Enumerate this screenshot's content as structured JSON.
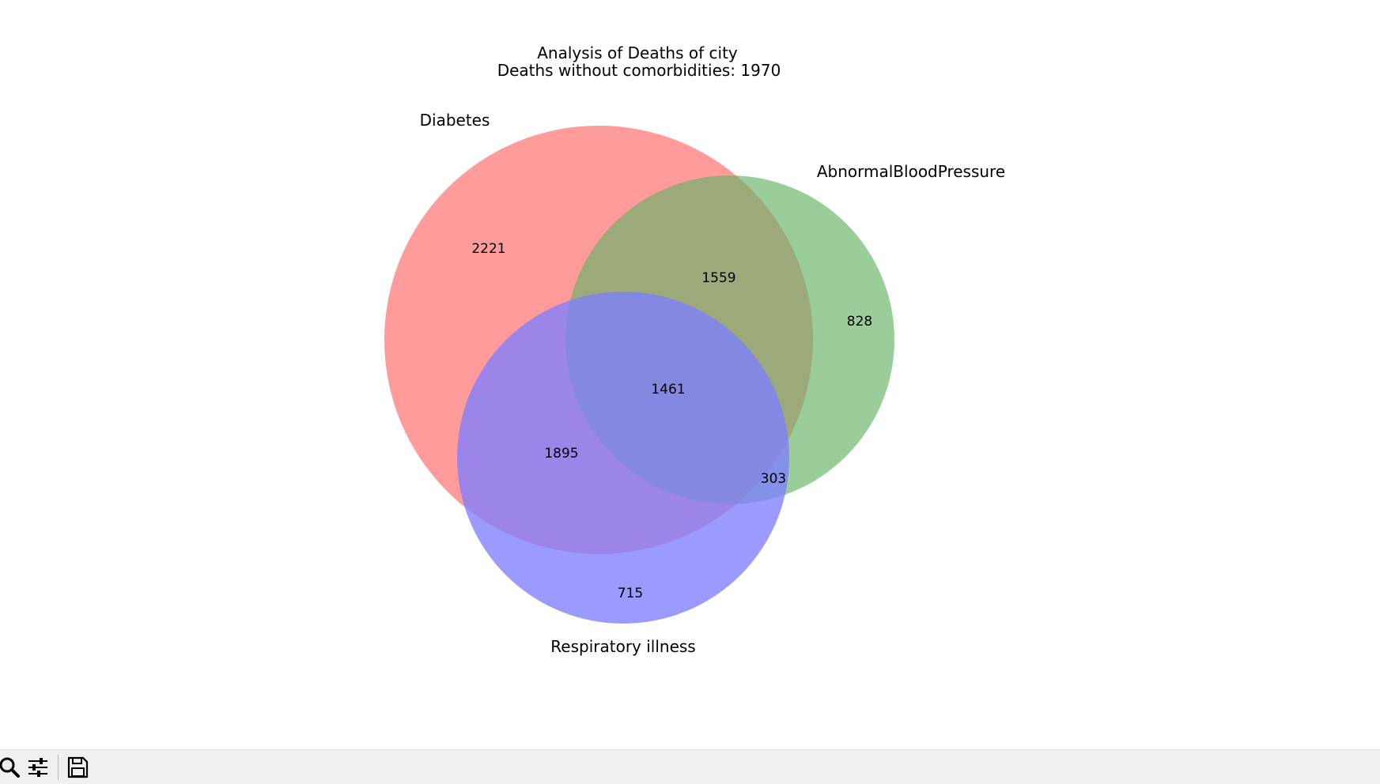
{
  "title": "Analysis of Deaths of city",
  "subtitle": "Deaths without comorbidities: 1970",
  "sets": [
    {
      "name": "Diabetes",
      "color": "#ff7f7f"
    },
    {
      "name": "AbnormalBloodPressure",
      "color": "#66b266"
    },
    {
      "name": "Respiratory illness",
      "color": "#7f7fff"
    }
  ],
  "regions": {
    "diabetes_only": "2221",
    "diabetes_and_blood_pressure": "1559",
    "blood_pressure_only": "828",
    "all_three": "1461",
    "diabetes_and_respiratory": "1895",
    "blood_pressure_and_respiratory": "303",
    "respiratory_only": "715"
  },
  "toolbar": {
    "icons": [
      "zoom-icon",
      "configure-subplots-icon",
      "save-icon"
    ]
  }
}
